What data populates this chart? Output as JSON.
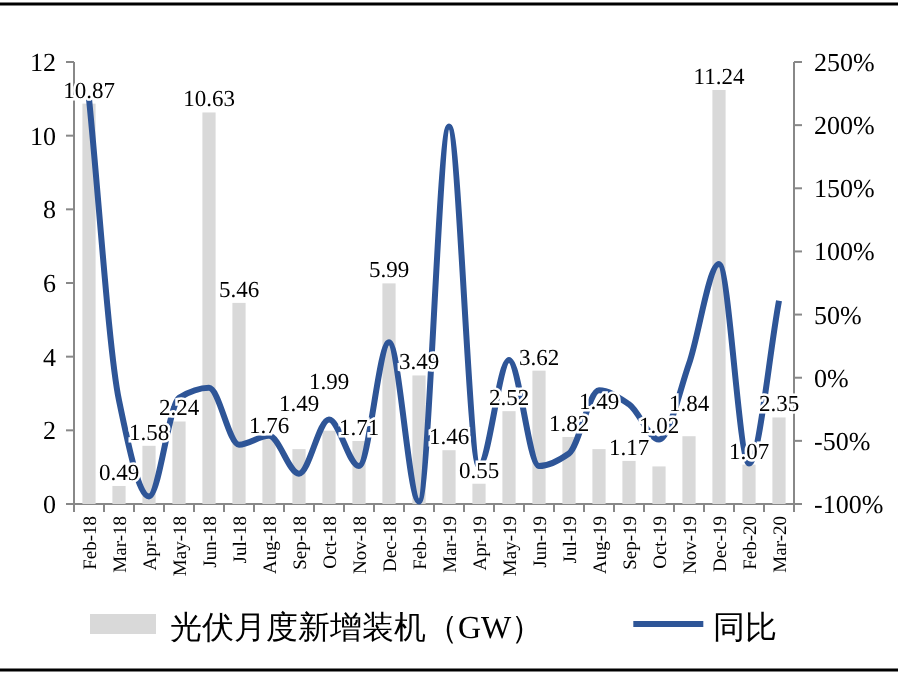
{
  "chart_data": {
    "type": "bar",
    "categories": [
      "Feb-18",
      "Mar-18",
      "Apr-18",
      "May-18",
      "Jun-18",
      "Jul-18",
      "Aug-18",
      "Sep-18",
      "Oct-18",
      "Nov-18",
      "Dec-18",
      "Feb-19",
      "Mar-19",
      "Apr-19",
      "May-19",
      "Jun-19",
      "Jul-19",
      "Aug-19",
      "Sep-19",
      "Oct-19",
      "Nov-19",
      "Dec-19",
      "Feb-20",
      "Mar-20"
    ],
    "series": [
      {
        "name": "光伏月度新增装机（GW）",
        "color": "#d9d9d9",
        "values": [
          10.87,
          0.49,
          1.58,
          2.24,
          10.63,
          5.46,
          1.76,
          1.49,
          1.99,
          1.71,
          5.99,
          3.49,
          1.46,
          0.55,
          2.52,
          3.62,
          1.82,
          1.49,
          1.17,
          1.02,
          1.84,
          11.24,
          1.07,
          2.35
        ],
        "value_labels": [
          "10.87",
          "0.49",
          "1.58",
          "2.24",
          "10.63",
          "5.46",
          "1.76",
          "1.49",
          "1.99",
          "1.71",
          "5.99",
          "3.49",
          "1.46",
          "0.55",
          "2.52",
          "3.62",
          "1.82",
          "1.49",
          "1.17",
          "1.02",
          "1.84",
          "11.24",
          "1.07",
          "2.35"
        ]
      },
      {
        "name": "同比",
        "type": "line",
        "axis": "y2",
        "color": "#2e5597",
        "values": [
          221,
          -18,
          -94,
          -16,
          -8,
          -53,
          -46,
          -76,
          -33,
          -70,
          28,
          -98,
          199,
          -70,
          14,
          -70,
          -60,
          -10,
          -21,
          -49,
          11,
          90,
          -68,
          61
        ]
      }
    ],
    "ylim": [
      0,
      12
    ],
    "yticks": [
      0,
      2,
      4,
      6,
      8,
      10,
      12
    ],
    "y2lim": [
      -100,
      250
    ],
    "y2ticks": [
      {
        "value": -100,
        "label": "-100%"
      },
      {
        "value": -50,
        "label": "-50%"
      },
      {
        "value": 0,
        "label": "0%"
      },
      {
        "value": 50,
        "label": "50%"
      },
      {
        "value": 100,
        "label": "100%"
      },
      {
        "value": 150,
        "label": "150%"
      },
      {
        "value": 200,
        "label": "200%"
      },
      {
        "value": 250,
        "label": "250%"
      }
    ],
    "grid": false,
    "legend": "bottom",
    "marker": "none",
    "line_style": "solid"
  }
}
